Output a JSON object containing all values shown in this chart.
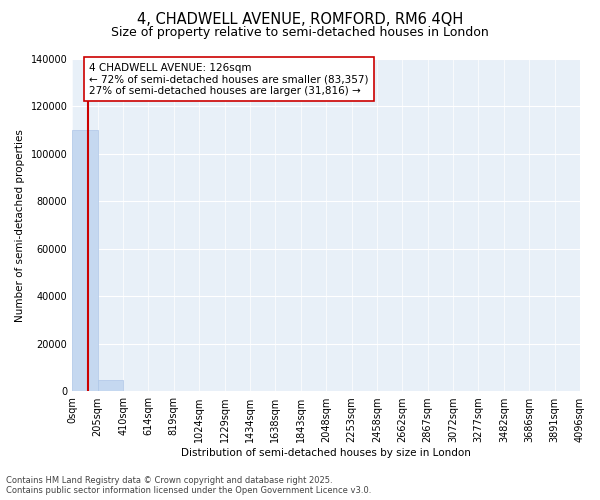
{
  "title": "4, CHADWELL AVENUE, ROMFORD, RM6 4QH",
  "subtitle": "Size of property relative to semi-detached houses in London",
  "xlabel": "Distribution of semi-detached houses by size in London",
  "ylabel": "Number of semi-detached properties",
  "property_size": 126,
  "property_name": "4 CHADWELL AVENUE: 126sqm",
  "pct_smaller": 72,
  "count_smaller": 83357,
  "pct_larger": 27,
  "count_larger": 31816,
  "bin_edges": [
    0,
    205,
    410,
    614,
    819,
    1024,
    1229,
    1434,
    1638,
    1843,
    2048,
    2253,
    2458,
    2662,
    2867,
    3072,
    3277,
    3482,
    3686,
    3891,
    4096
  ],
  "bin_labels": [
    "0sqm",
    "205sqm",
    "410sqm",
    "614sqm",
    "819sqm",
    "1024sqm",
    "1229sqm",
    "1434sqm",
    "1638sqm",
    "1843sqm",
    "2048sqm",
    "2253sqm",
    "2458sqm",
    "2662sqm",
    "2867sqm",
    "3072sqm",
    "3277sqm",
    "3482sqm",
    "3686sqm",
    "3891sqm",
    "4096sqm"
  ],
  "bar_heights": [
    110000,
    5000,
    150,
    50,
    20,
    10,
    5,
    3,
    2,
    1,
    1,
    0,
    0,
    0,
    0,
    0,
    0,
    0,
    0,
    0
  ],
  "bar_color": "#c5d8f0",
  "bar_edge_color": "#aec6e8",
  "red_line_color": "#cc0000",
  "annotation_box_color": "#cc0000",
  "background_color": "#e8f0f8",
  "ylim": [
    0,
    140000
  ],
  "yticks": [
    0,
    20000,
    40000,
    60000,
    80000,
    100000,
    120000,
    140000
  ],
  "footer_line1": "Contains HM Land Registry data © Crown copyright and database right 2025.",
  "footer_line2": "Contains public sector information licensed under the Open Government Licence v3.0.",
  "title_fontsize": 10.5,
  "subtitle_fontsize": 9,
  "axis_label_fontsize": 7.5,
  "tick_fontsize": 7,
  "annotation_fontsize": 7.5,
  "footer_fontsize": 6
}
